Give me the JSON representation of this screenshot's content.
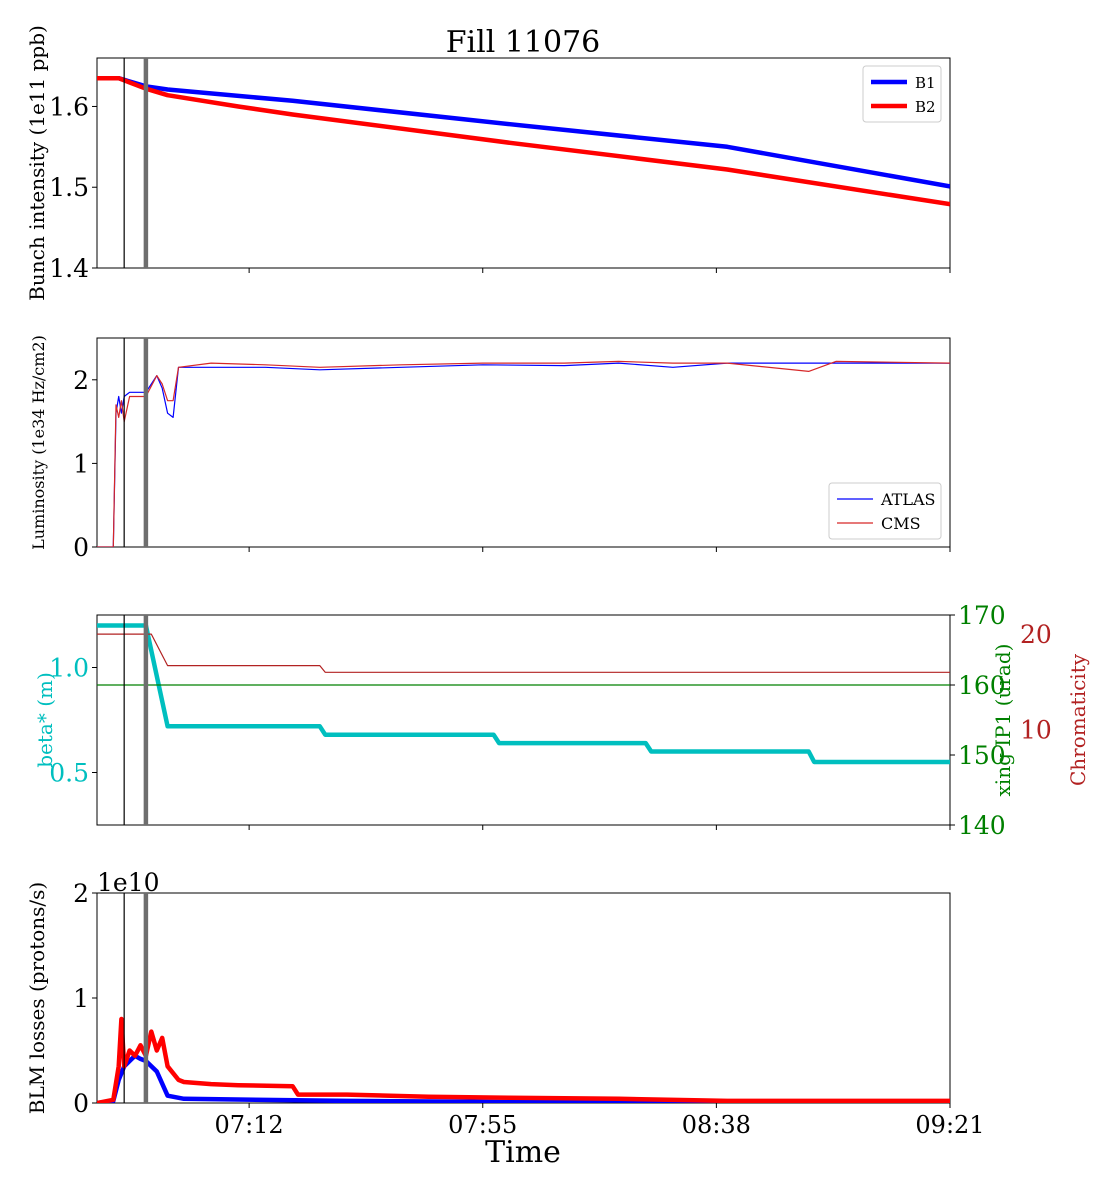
{
  "title": "Fill 11076",
  "x_axis": {
    "label": "Time",
    "range": [
      "06:44",
      "09:21"
    ],
    "ticks": [
      "07:12",
      "07:55",
      "08:38",
      "09:21"
    ]
  },
  "markers": {
    "thin_line_time": "06:49",
    "thick_line_time": "06:53"
  },
  "colors": {
    "b1": "#0000ff",
    "b2": "#ff0000",
    "atlas": "#0000ff",
    "cms": "#d62728",
    "beta": "#00bfbf",
    "xing": "#008000",
    "chroma": "#b22222",
    "marker_thick": "#6e6e6e"
  },
  "chart_data": [
    {
      "type": "line",
      "ylabel": "Bunch intensity (1e11 ppb)",
      "ylim": [
        1.4,
        1.66
      ],
      "yticks": [
        "1.4",
        "1.5",
        "1.6"
      ],
      "legend_position": "top-right",
      "series": [
        {
          "name": "B1",
          "points": [
            [
              "06:44",
              1.635
            ],
            [
              "06:48",
              1.635
            ],
            [
              "06:53",
              1.625
            ],
            [
              "06:57",
              1.621
            ],
            [
              "07:20",
              1.607
            ],
            [
              "08:00",
              1.578
            ],
            [
              "08:40",
              1.55
            ],
            [
              "09:21",
              1.501
            ]
          ]
        },
        {
          "name": "B2",
          "points": [
            [
              "06:44",
              1.635
            ],
            [
              "06:48",
              1.635
            ],
            [
              "06:53",
              1.622
            ],
            [
              "06:57",
              1.614
            ],
            [
              "07:10",
              1.6
            ],
            [
              "07:20",
              1.59
            ],
            [
              "08:00",
              1.555
            ],
            [
              "08:40",
              1.522
            ],
            [
              "09:21",
              1.479
            ]
          ]
        }
      ]
    },
    {
      "type": "line",
      "ylabel": "Luminosity (1e34 Hz/cm2)",
      "ylim": [
        0,
        2.5
      ],
      "yticks": [
        "0",
        "1",
        "2"
      ],
      "legend_position": "lower-right",
      "series": [
        {
          "name": "ATLAS",
          "points": [
            [
              "06:44",
              0
            ],
            [
              "06:47",
              0
            ],
            [
              "06:47.5",
              1.6
            ],
            [
              "06:48",
              1.8
            ],
            [
              "06:48.5",
              1.6
            ],
            [
              "06:49",
              1.8
            ],
            [
              "06:50",
              1.85
            ],
            [
              "06:53",
              1.85
            ],
            [
              "06:55",
              2.05
            ],
            [
              "06:56",
              1.9
            ],
            [
              "06:57",
              1.6
            ],
            [
              "06:58",
              1.55
            ],
            [
              "06:59",
              2.15
            ],
            [
              "07:05",
              2.15
            ],
            [
              "07:15",
              2.15
            ],
            [
              "07:25",
              2.12
            ],
            [
              "07:40",
              2.15
            ],
            [
              "07:55",
              2.18
            ],
            [
              "08:10",
              2.17
            ],
            [
              "08:20",
              2.2
            ],
            [
              "08:30",
              2.15
            ],
            [
              "08:40",
              2.2
            ],
            [
              "09:00",
              2.2
            ],
            [
              "09:21",
              2.2
            ]
          ]
        },
        {
          "name": "CMS",
          "points": [
            [
              "06:44",
              0
            ],
            [
              "06:47",
              0
            ],
            [
              "06:47.5",
              1.7
            ],
            [
              "06:48",
              1.55
            ],
            [
              "06:48.5",
              1.75
            ],
            [
              "06:49",
              1.5
            ],
            [
              "06:50",
              1.8
            ],
            [
              "06:53",
              1.8
            ],
            [
              "06:55",
              2.05
            ],
            [
              "06:56",
              1.95
            ],
            [
              "06:57",
              1.75
            ],
            [
              "06:58",
              1.75
            ],
            [
              "06:59",
              2.15
            ],
            [
              "07:05",
              2.2
            ],
            [
              "07:15",
              2.18
            ],
            [
              "07:25",
              2.15
            ],
            [
              "07:40",
              2.18
            ],
            [
              "07:55",
              2.2
            ],
            [
              "08:10",
              2.2
            ],
            [
              "08:20",
              2.22
            ],
            [
              "08:30",
              2.2
            ],
            [
              "08:40",
              2.2
            ],
            [
              "08:55",
              2.1
            ],
            [
              "09:00",
              2.22
            ],
            [
              "09:21",
              2.2
            ]
          ]
        }
      ]
    },
    {
      "type": "line",
      "ylabel": "beta* (m)",
      "ylim": [
        0.25,
        1.25
      ],
      "yticks": [
        "0.5",
        "1.0"
      ],
      "y2label": "xing IP1 (urad)",
      "y2lim": [
        140,
        170
      ],
      "y2ticks": [
        "140",
        "150",
        "160",
        "170"
      ],
      "y3label": "Chromaticity",
      "y3lim": [
        0,
        22
      ],
      "y3ticks": [
        "10",
        "20"
      ],
      "series": [
        {
          "name": "beta*",
          "points": [
            [
              "06:44",
              1.2
            ],
            [
              "06:53",
              1.2
            ],
            [
              "06:57",
              0.72
            ],
            [
              "07:25",
              0.72
            ],
            [
              "07:26",
              0.68
            ],
            [
              "07:57",
              0.68
            ],
            [
              "07:58",
              0.64
            ],
            [
              "08:25",
              0.64
            ],
            [
              "08:26",
              0.6
            ],
            [
              "08:55",
              0.6
            ],
            [
              "08:56",
              0.55
            ],
            [
              "09:21",
              0.55
            ]
          ]
        },
        {
          "name": "xing IP1",
          "points": [
            [
              "06:44",
              160
            ],
            [
              "09:21",
              160
            ]
          ]
        },
        {
          "name": "Chromaticity",
          "points": [
            [
              "06:44",
              20
            ],
            [
              "06:54",
              20
            ],
            [
              "06:57",
              16.7
            ],
            [
              "07:25",
              16.7
            ],
            [
              "07:26",
              16
            ],
            [
              "09:21",
              16
            ]
          ]
        }
      ]
    },
    {
      "type": "line",
      "ylabel": "BLM losses (protons/s)",
      "offset_label": "1e10",
      "ylim": [
        0,
        2
      ],
      "yticks": [
        "0",
        "1",
        "2"
      ],
      "series": [
        {
          "name": "B1",
          "points": [
            [
              "06:44",
              0
            ],
            [
              "06:47",
              0.02
            ],
            [
              "06:48",
              0.22
            ],
            [
              "06:49",
              0.35
            ],
            [
              "06:50",
              0.4
            ],
            [
              "06:51",
              0.45
            ],
            [
              "06:52",
              0.42
            ],
            [
              "06:53",
              0.4
            ],
            [
              "06:55",
              0.3
            ],
            [
              "06:57",
              0.07
            ],
            [
              "07:00",
              0.04
            ],
            [
              "07:30",
              0.02
            ],
            [
              "08:00",
              0.01
            ],
            [
              "09:21",
              0.005
            ]
          ]
        },
        {
          "name": "B2",
          "points": [
            [
              "06:44",
              0
            ],
            [
              "06:47",
              0.03
            ],
            [
              "06:48",
              0.35
            ],
            [
              "06:48.5",
              0.8
            ],
            [
              "06:49",
              0.35
            ],
            [
              "06:50",
              0.5
            ],
            [
              "06:51",
              0.45
            ],
            [
              "06:52",
              0.55
            ],
            [
              "06:53",
              0.45
            ],
            [
              "06:54",
              0.68
            ],
            [
              "06:55",
              0.5
            ],
            [
              "06:56",
              0.62
            ],
            [
              "06:57",
              0.35
            ],
            [
              "06:59",
              0.22
            ],
            [
              "07:00",
              0.2
            ],
            [
              "07:05",
              0.18
            ],
            [
              "07:10",
              0.17
            ],
            [
              "07:20",
              0.16
            ],
            [
              "07:21",
              0.08
            ],
            [
              "07:30",
              0.08
            ],
            [
              "07:45",
              0.06
            ],
            [
              "08:00",
              0.05
            ],
            [
              "08:20",
              0.04
            ],
            [
              "08:40",
              0.02
            ],
            [
              "09:21",
              0.02
            ]
          ]
        }
      ]
    }
  ]
}
